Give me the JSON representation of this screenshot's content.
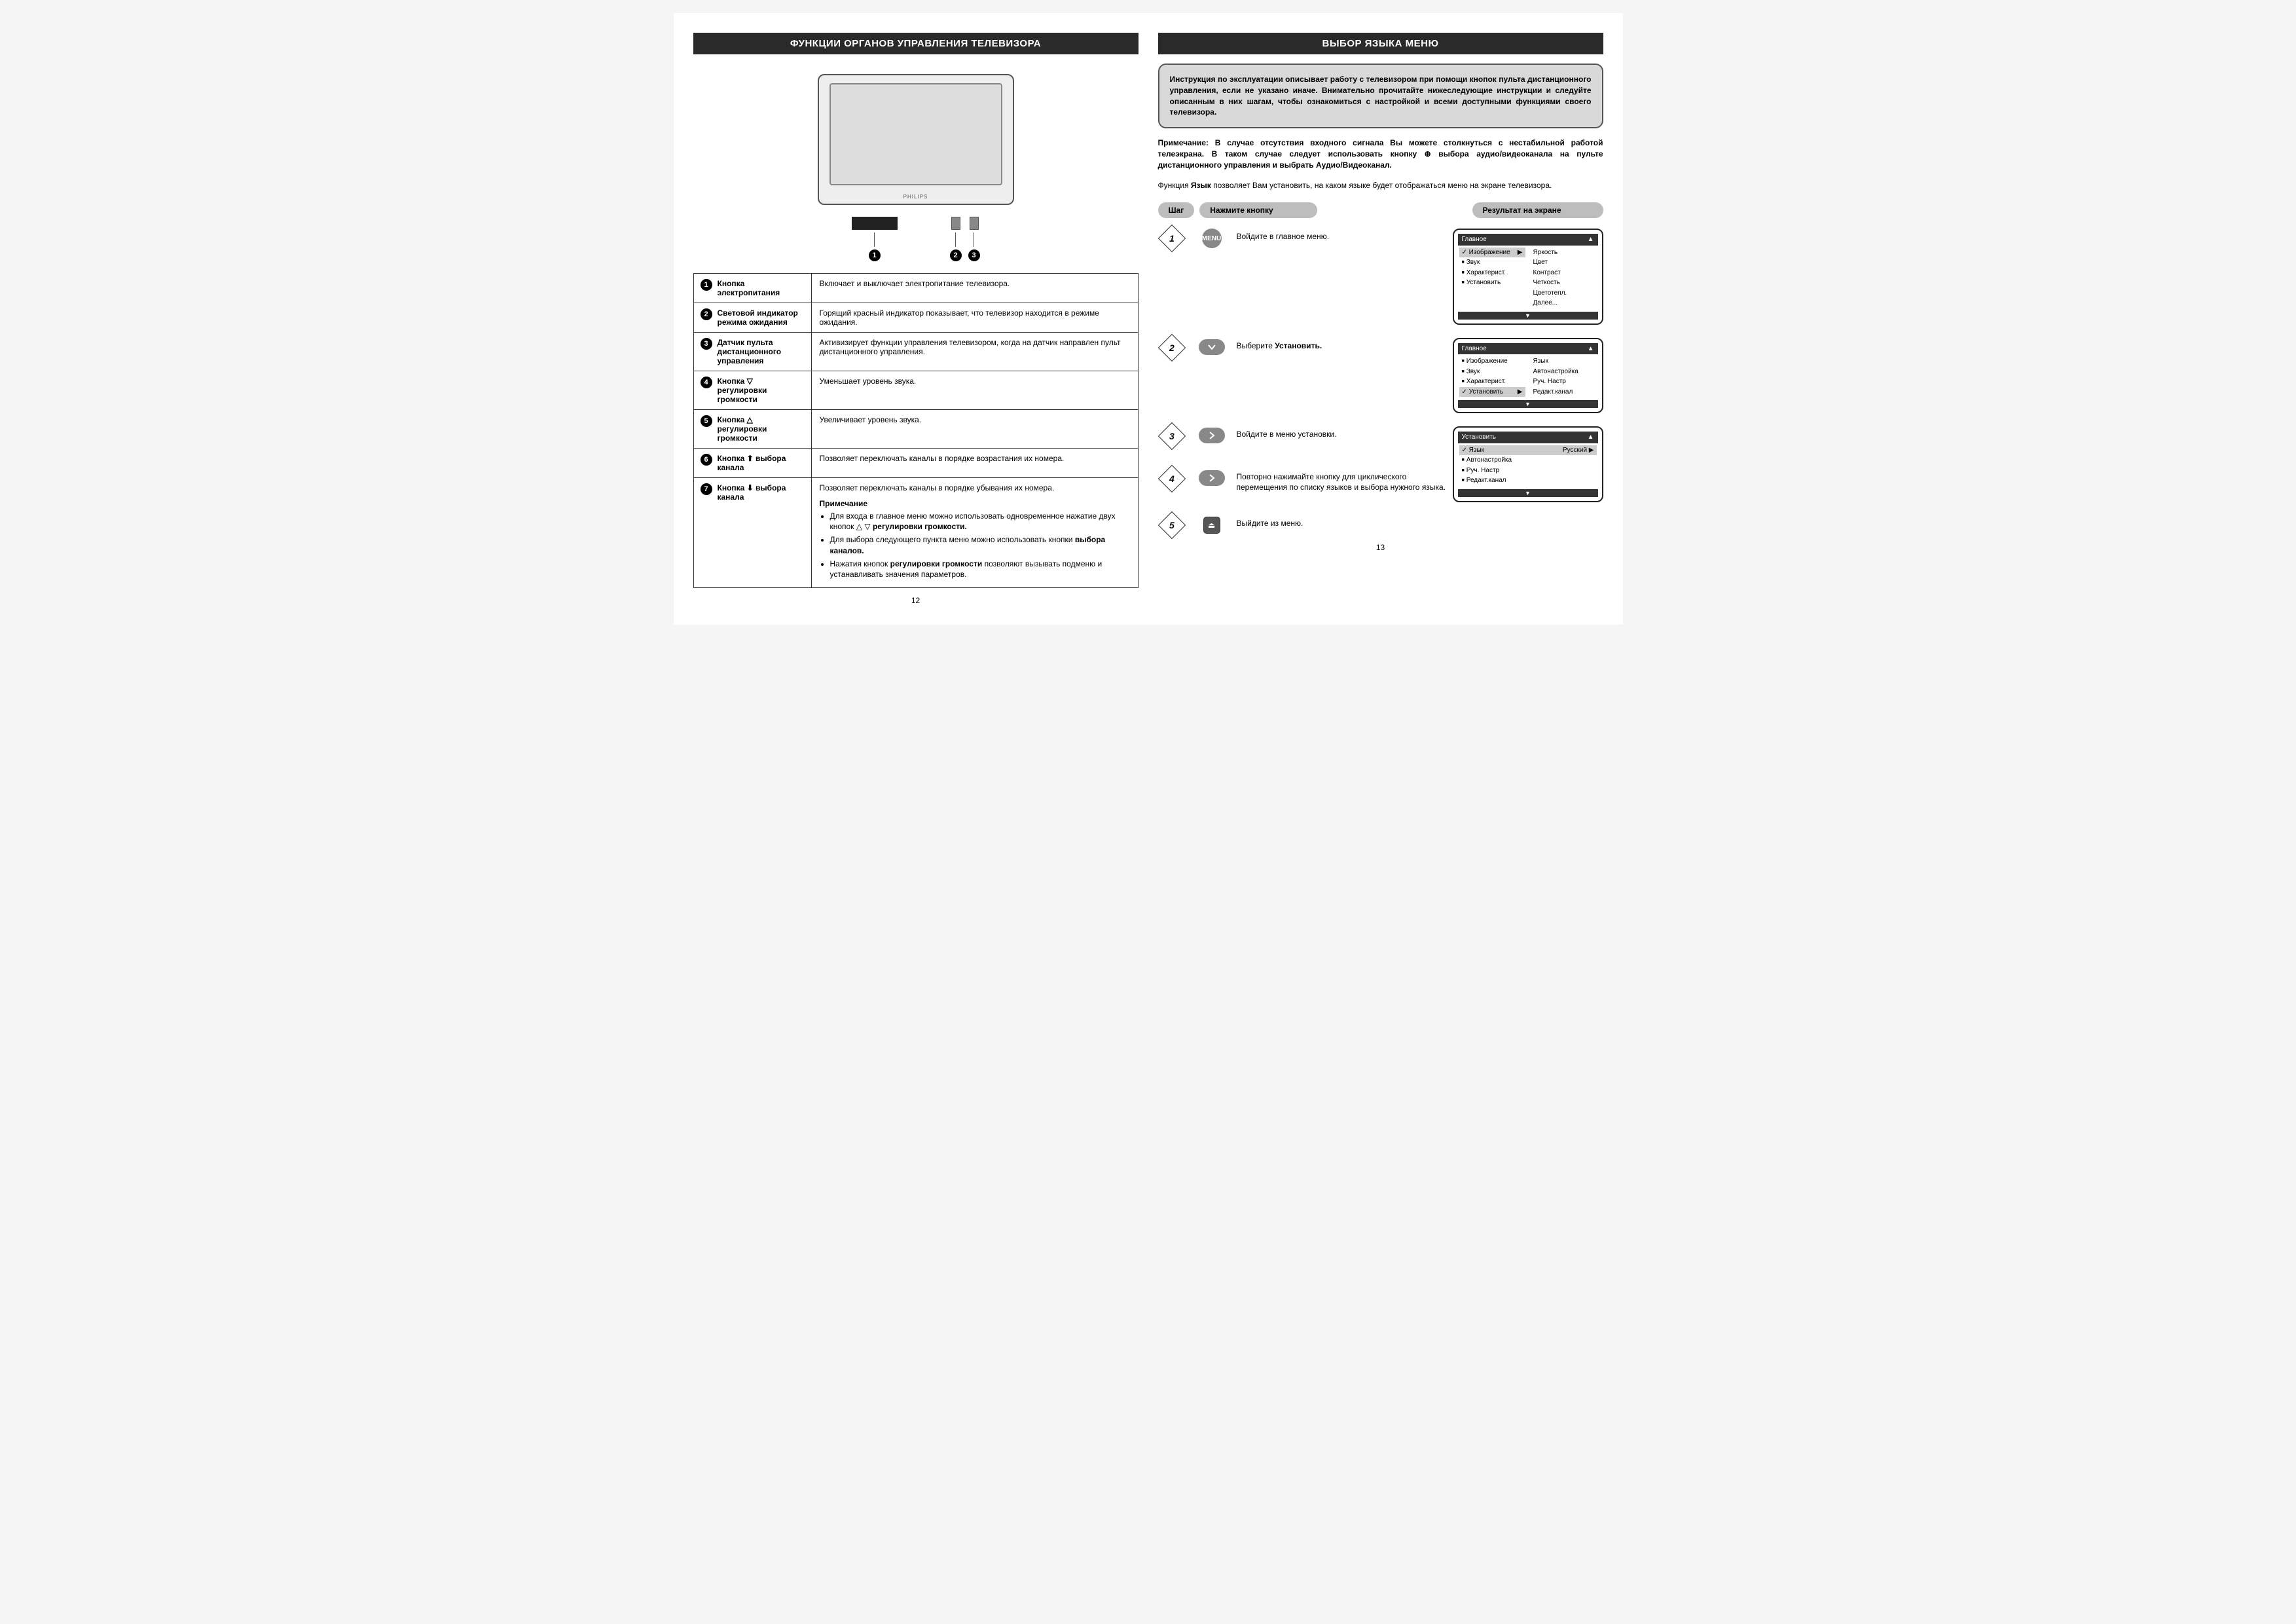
{
  "left": {
    "title": "ФУНКЦИИ ОРГАНОВ УПРАВЛЕНИЯ ТЕЛЕВИЗОРА",
    "tv_brand": "PHILIPS",
    "page_num": "12",
    "controls": [
      {
        "n": "1",
        "label": "Кнопка электропитания",
        "desc": "Включает и выключает электропитание телевизора."
      },
      {
        "n": "2",
        "label": "Световой индикатор режима ожидания",
        "desc": "Горящий красный индикатор показывает, что телевизор находится в режиме ожидания."
      },
      {
        "n": "3",
        "label": "Датчик пульта дистанционного управления",
        "desc": "Активизирует функции управления телевизором, когда на датчик направлен пульт дистанционного управления."
      },
      {
        "n": "4",
        "label": "Кнопка ▽ регулировки громкости",
        "desc": "Уменьшает уровень звука."
      },
      {
        "n": "5",
        "label": "Кнопка △ регулировки громкости",
        "desc": "Увеличивает уровень звука."
      },
      {
        "n": "6",
        "label": "Кнопка ⬆ выбора канала",
        "desc": "Позволяет переключать каналы в порядке возрастания их номера."
      },
      {
        "n": "7",
        "label": "Кнопка ⬇ выбора канала",
        "desc": "Позволяет переключать каналы в порядке убывания их номера."
      }
    ],
    "note_title": "Примечание",
    "notes": [
      "Для входа в главное меню можно использовать одновременное нажатие двух кнопок △ ▽ регулировки громкости.",
      "Для выбора следующего пункта меню можно использовать кнопки выбора каналов.",
      "Нажатия кнопок регулировки громкости позволяют вызывать подменю и устанавливать значения параметров."
    ]
  },
  "right": {
    "title": "ВЫБОР ЯЗЫКА МЕНЮ",
    "page_num": "13",
    "info_box": "Инструкция по эксплуатации описывает работу с телевизором при помощи кнопок пульта дистанционного управления, если не указано иначе. Внимательно прочитайте нижеследующие инструкции и следуйте описанным в них шагам, чтобы ознакомиться с настройкой и всеми доступными функциями своего телевизора.",
    "note_para": "Примечание: В случае отсутствия входного сигнала Вы можете столкнуться с нестабильной работой телеэкрана. В таком случае следует использовать кнопку ⊕ выбора аудио/видеоканала на пульте дистанционного управления и выбрать Аудио/Видеоканал.",
    "body_para_prefix": "Функция ",
    "body_para_bold": "Язык",
    "body_para_suffix": " позволяет Вам установить, на каком языке будет отображаться меню на экране телевизора.",
    "col_headers": {
      "step": "Шаг",
      "press": "Нажмите кнопку",
      "result": "Результат на экране"
    },
    "steps": [
      {
        "n": "1",
        "btn_type": "menu",
        "btn_label": "MENU",
        "text": "Войдите в главное меню."
      },
      {
        "n": "2",
        "btn_type": "oval",
        "glyph": "V",
        "text_prefix": "Выберите ",
        "text_bold": "Установить."
      },
      {
        "n": "3",
        "btn_type": "oval",
        "glyph": ">",
        "text": "Войдите в меню установки."
      },
      {
        "n": "4",
        "btn_type": "oval",
        "glyph": ">",
        "text": "Повторно нажимайте кнопку для циклического перемещения по списку языков и выбора нужного языка."
      },
      {
        "n": "5",
        "btn_type": "square",
        "glyph": "⏏",
        "text": "Выйдите из меню."
      }
    ],
    "osd1": {
      "title": "Главное",
      "left_items": [
        {
          "label": "Изображение",
          "sel": true
        },
        {
          "label": "Звук"
        },
        {
          "label": "Характерист."
        },
        {
          "label": "Установить"
        }
      ],
      "right_items": [
        "Яркость",
        "Цвет",
        "Контраст",
        "Четкость",
        "Цветотепл.",
        "Далее..."
      ]
    },
    "osd2": {
      "title": "Главное",
      "left_items": [
        {
          "label": "Изображение"
        },
        {
          "label": "Звук"
        },
        {
          "label": "Характерист."
        },
        {
          "label": "Установить",
          "sel": true
        }
      ],
      "right_items": [
        "Язык",
        "Автонастройка",
        "Руч. Настр",
        "Редакт.канал"
      ]
    },
    "osd3": {
      "title": "Установить",
      "left_items": [
        {
          "label": "Язык",
          "sel": true,
          "value": "Русский"
        },
        {
          "label": "Автонастройка"
        },
        {
          "label": "Руч. Настр"
        },
        {
          "label": "Редакт.канал"
        }
      ]
    }
  }
}
